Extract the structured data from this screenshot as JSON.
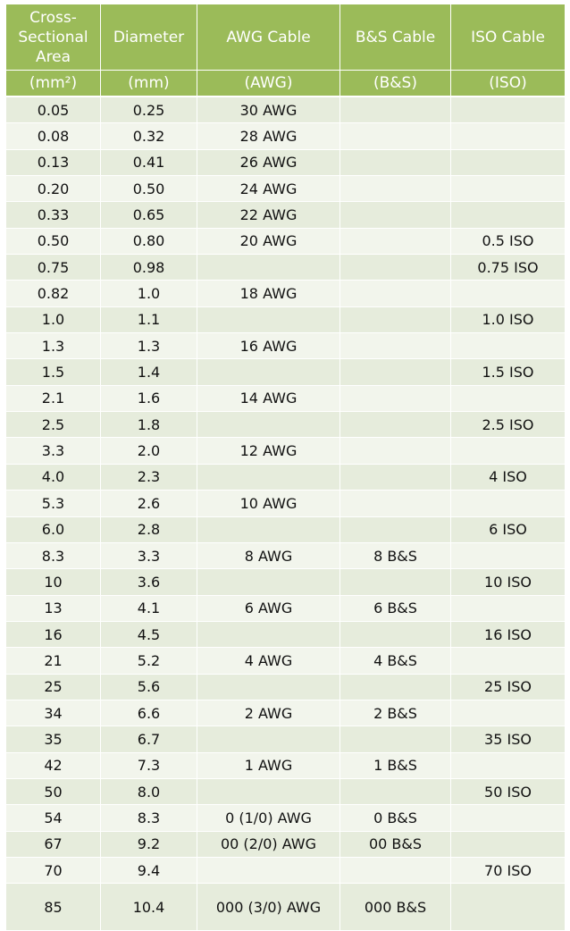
{
  "headers": [
    {
      "title": "Cross-Sectional Area",
      "unit": "(mm²)"
    },
    {
      "title": "Diameter",
      "unit": "(mm)"
    },
    {
      "title": "AWG Cable",
      "unit": "(AWG)"
    },
    {
      "title": "B&S Cable",
      "unit": "(B&S)"
    },
    {
      "title": "ISO Cable",
      "unit": "(ISO)"
    }
  ],
  "rows": [
    [
      "0.05",
      "0.25",
      "30 AWG",
      "",
      ""
    ],
    [
      "0.08",
      "0.32",
      "28 AWG",
      "",
      ""
    ],
    [
      "0.13",
      "0.41",
      "26 AWG",
      "",
      ""
    ],
    [
      "0.20",
      "0.50",
      "24 AWG",
      "",
      ""
    ],
    [
      "0.33",
      "0.65",
      "22 AWG",
      "",
      ""
    ],
    [
      "0.50",
      "0.80",
      "20 AWG",
      "",
      "0.5 ISO"
    ],
    [
      "0.75",
      "0.98",
      "",
      "",
      "0.75 ISO"
    ],
    [
      "0.82",
      "1.0",
      "18 AWG",
      "",
      ""
    ],
    [
      "1.0",
      "1.1",
      "",
      "",
      "1.0 ISO"
    ],
    [
      "1.3",
      "1.3",
      "16 AWG",
      "",
      ""
    ],
    [
      "1.5",
      "1.4",
      "",
      "",
      "1.5 ISO"
    ],
    [
      "2.1",
      "1.6",
      "14 AWG",
      "",
      ""
    ],
    [
      "2.5",
      "1.8",
      "",
      "",
      "2.5 ISO"
    ],
    [
      "3.3",
      "2.0",
      "12 AWG",
      "",
      ""
    ],
    [
      "4.0",
      "2.3",
      "",
      "",
      "4 ISO"
    ],
    [
      "5.3",
      "2.6",
      "10 AWG",
      "",
      ""
    ],
    [
      "6.0",
      "2.8",
      "",
      "",
      "6 ISO"
    ],
    [
      "8.3",
      "3.3",
      "8 AWG",
      "8 B&S",
      ""
    ],
    [
      "10",
      "3.6",
      "",
      "",
      "10 ISO"
    ],
    [
      "13",
      "4.1",
      "6 AWG",
      "6 B&S",
      ""
    ],
    [
      "16",
      "4.5",
      "",
      "",
      "16 ISO"
    ],
    [
      "21",
      "5.2",
      "4 AWG",
      "4 B&S",
      ""
    ],
    [
      "25",
      "5.6",
      "",
      "",
      "25 ISO"
    ],
    [
      "34",
      "6.6",
      "2 AWG",
      "2 B&S",
      ""
    ],
    [
      "35",
      "6.7",
      "",
      "",
      "35 ISO"
    ],
    [
      "42",
      "7.3",
      "1 AWG",
      "1 B&S",
      ""
    ],
    [
      "50",
      "8.0",
      "",
      "",
      "50 ISO"
    ],
    [
      "54",
      "8.3",
      "0 (1/0) AWG",
      "0 B&S",
      ""
    ],
    [
      "67",
      "9.2",
      "00 (2/0) AWG",
      "00 B&S",
      ""
    ],
    [
      "70",
      "9.4",
      "",
      "",
      "70 ISO"
    ],
    [
      "85",
      "10.4",
      "000 (3/0) AWG",
      "000 B&S",
      ""
    ]
  ]
}
